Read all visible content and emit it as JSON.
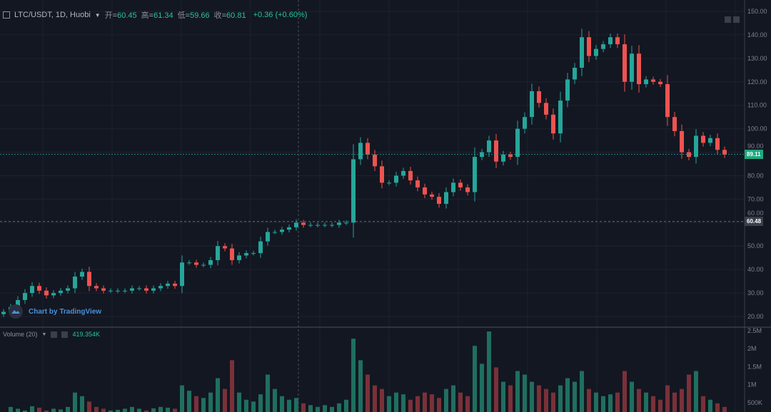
{
  "header": {
    "symbol": "LTC/USDT, 1D, Huobi",
    "open_label": "开",
    "open": "60.45",
    "high_label": "高",
    "high": "61.34",
    "low_label": "低",
    "low": "59.66",
    "close_label": "收",
    "close": "60.81",
    "change": "+0.36 (+0.60%)"
  },
  "volume_legend": {
    "label": "Volume (20)",
    "value": "419.354K"
  },
  "branding": "Chart by TradingView",
  "price_tags": {
    "last": "89.11",
    "crosshair": "60.48"
  },
  "colors": {
    "up": "#26a69a",
    "down": "#ef5350",
    "bg": "#131722"
  },
  "chart_data": {
    "type": "candlestick",
    "title": "LTC/USDT, 1D, Huobi",
    "price_axis": {
      "range": [
        20,
        150
      ],
      "ticks": [
        "150.00",
        "140.00",
        "130.00",
        "120.00",
        "110.00",
        "100.00",
        "90.00",
        "80.00",
        "70.00",
        "60.00",
        "50.00",
        "40.00",
        "30.00",
        "20.00"
      ]
    },
    "volume_axis": {
      "range": [
        0,
        2500
      ],
      "ticks": [
        "2.5M",
        "2M",
        "1.5M",
        "1M",
        "500K"
      ]
    },
    "closes": [
      22,
      24,
      27,
      30,
      33,
      31,
      29,
      30,
      31,
      32,
      37,
      39,
      33,
      32,
      31,
      31,
      31,
      31,
      32,
      32,
      31,
      32,
      33,
      34,
      33,
      43,
      43,
      42,
      42,
      44,
      50,
      49,
      44,
      46,
      47,
      47,
      52,
      56,
      56,
      57,
      58,
      60,
      59,
      59,
      59,
      59,
      59,
      60,
      60,
      87,
      94,
      89,
      84,
      77,
      77,
      80,
      82,
      78,
      75,
      72,
      71,
      68,
      73,
      77,
      75,
      73,
      88,
      90,
      95,
      86,
      89,
      88,
      100,
      105,
      116,
      111,
      106,
      98,
      112,
      121,
      126,
      139,
      131,
      134,
      136,
      139,
      136,
      120,
      132,
      119,
      121,
      120,
      119,
      105,
      99,
      90,
      88,
      97,
      94,
      96,
      91,
      89
    ],
    "volumes_k": [
      150,
      300,
      250,
      200,
      320,
      280,
      200,
      250,
      230,
      300,
      700,
      600,
      450,
      300,
      250,
      200,
      220,
      250,
      300,
      250,
      200,
      260,
      300,
      280,
      250,
      900,
      750,
      600,
      550,
      700,
      1100,
      800,
      1600,
      700,
      500,
      450,
      650,
      1200,
      800,
      600,
      500,
      550,
      400,
      350,
      300,
      350,
      300,
      400,
      500,
      2200,
      1600,
      1200,
      900,
      800,
      600,
      700,
      650,
      500,
      600,
      700,
      650,
      550,
      800,
      900,
      700,
      600,
      2000,
      1500,
      2400,
      1400,
      1000,
      900,
      1300,
      1200,
      1000,
      900,
      800,
      700,
      900,
      1100,
      1000,
      1300,
      800,
      700,
      600,
      650,
      700,
      1300,
      1000,
      800,
      700,
      600,
      500,
      900,
      700,
      800,
      1200,
      1300,
      600,
      500,
      400,
      300
    ]
  }
}
